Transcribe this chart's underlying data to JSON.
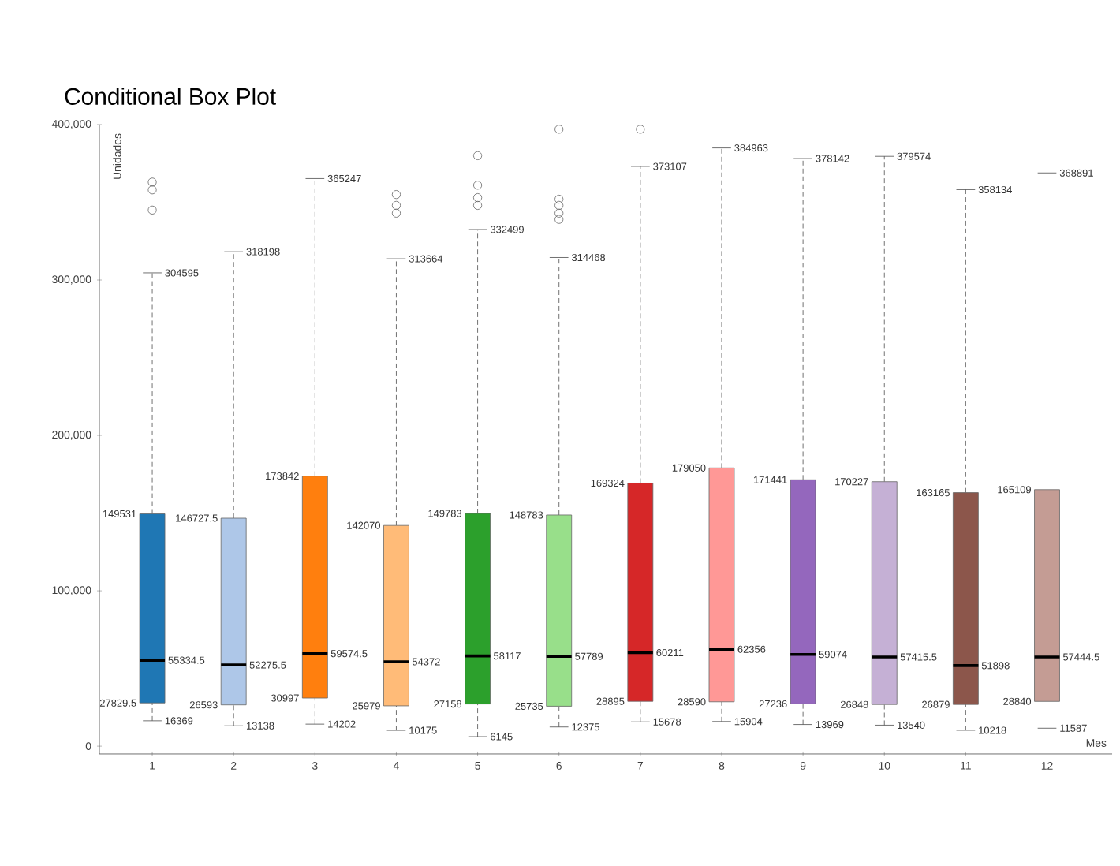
{
  "chart_data": {
    "type": "box",
    "title": "Conditional Box Plot",
    "xlabel": "Mes",
    "ylabel": "Unidades",
    "categories": [
      "1",
      "2",
      "3",
      "4",
      "5",
      "6",
      "7",
      "8",
      "9",
      "10",
      "11",
      "12"
    ],
    "colors": [
      "#1f77b4",
      "#aec7e8",
      "#ff7f0e",
      "#ffbb78",
      "#2ca02c",
      "#98df8a",
      "#d62728",
      "#ff9896",
      "#9467bd",
      "#c5b0d5",
      "#8c564b",
      "#c49c94"
    ],
    "boxes": [
      {
        "low": 16369,
        "q1": 27829.5,
        "median": 55334.5,
        "q3": 149531,
        "high": 304595,
        "outliers": [
          345000,
          358000,
          363000
        ]
      },
      {
        "low": 13138,
        "q1": 26593,
        "median": 52275.5,
        "q3": 146727.5,
        "high": 318198
      },
      {
        "low": 14202,
        "q1": 30997,
        "median": 59574.5,
        "q3": 173842,
        "high": 365247
      },
      {
        "low": 10175,
        "q1": 25979,
        "median": 54372,
        "q3": 142070,
        "high": 313664,
        "outliers": [
          343000,
          348000,
          355000
        ]
      },
      {
        "low": 6145,
        "q1": 27158,
        "median": 58117,
        "q3": 149783,
        "high": 332499,
        "outliers": [
          348000,
          353000,
          361000,
          380000
        ]
      },
      {
        "low": 12375,
        "q1": 25735,
        "median": 57789,
        "q3": 148783,
        "high": 314468,
        "outliers": [
          339000,
          343000,
          348000,
          352000,
          397000
        ]
      },
      {
        "low": 15678,
        "q1": 28895,
        "median": 60211,
        "q3": 169324,
        "high": 373107,
        "outliers": [
          397000
        ]
      },
      {
        "low": 15904,
        "q1": 28590,
        "median": 62356,
        "q3": 179050,
        "high": 384963
      },
      {
        "low": 13969,
        "q1": 27236,
        "median": 59074,
        "q3": 171441,
        "high": 378142
      },
      {
        "low": 13540,
        "q1": 26848,
        "median": 57415.5,
        "q3": 170227,
        "high": 379574
      },
      {
        "low": 10218,
        "q1": 26879,
        "median": 51898,
        "q3": 163165,
        "high": 358134
      },
      {
        "low": 11587,
        "q1": 28840,
        "median": 57444.5,
        "q3": 165109,
        "high": 368891
      }
    ],
    "annotations": [
      {
        "text": "149531",
        "x": "1",
        "y": 149531
      },
      {
        "text": "304595",
        "x": "1",
        "y": 304595
      },
      {
        "text": "55334.5",
        "x": "1",
        "y": 55334.5
      },
      {
        "text": "27829.5",
        "x": "1",
        "y": 27829.5
      },
      {
        "text": "16369",
        "x": "1",
        "y": 16369
      },
      {
        "text": "146727.5",
        "x": "2",
        "y": 146727.5
      },
      {
        "text": "318198",
        "x": "2",
        "y": 318198
      },
      {
        "text": "52275.5",
        "x": "2",
        "y": 52275.5
      },
      {
        "text": "26593",
        "x": "2",
        "y": 26593
      },
      {
        "text": "13138",
        "x": "2",
        "y": 13138
      },
      {
        "text": "173842",
        "x": "3",
        "y": 173842
      },
      {
        "text": "365247",
        "x": "3",
        "y": 365247
      },
      {
        "text": "59574.5",
        "x": "3",
        "y": 59574.5
      },
      {
        "text": "30997",
        "x": "3",
        "y": 30997
      },
      {
        "text": "14202",
        "x": "3",
        "y": 14202
      },
      {
        "text": "142070",
        "x": "4",
        "y": 142070
      },
      {
        "text": "313664",
        "x": "4",
        "y": 313664
      },
      {
        "text": "54372",
        "x": "4",
        "y": 54372
      },
      {
        "text": "25979",
        "x": "4",
        "y": 25979
      },
      {
        "text": "10175",
        "x": "4",
        "y": 10175
      },
      {
        "text": "149783",
        "x": "5",
        "y": 149783
      },
      {
        "text": "332499",
        "x": "5",
        "y": 332499
      },
      {
        "text": "58117",
        "x": "5",
        "y": 58117
      },
      {
        "text": "27158",
        "x": "5",
        "y": 27158
      },
      {
        "text": "6145",
        "x": "5",
        "y": 6145
      },
      {
        "text": "148783",
        "x": "6",
        "y": 148783
      },
      {
        "text": "314468",
        "x": "6",
        "y": 314468
      },
      {
        "text": "57789",
        "x": "6",
        "y": 57789
      },
      {
        "text": "25735",
        "x": "6",
        "y": 25735
      },
      {
        "text": "12375",
        "x": "6",
        "y": 12375
      },
      {
        "text": "169324",
        "x": "7",
        "y": 169324
      },
      {
        "text": "373107",
        "x": "7",
        "y": 373107
      },
      {
        "text": "60211",
        "x": "7",
        "y": 60211
      },
      {
        "text": "28895",
        "x": "7",
        "y": 28895
      },
      {
        "text": "15678",
        "x": "7",
        "y": 15678
      },
      {
        "text": "179050",
        "x": "8",
        "y": 179050
      },
      {
        "text": "384963",
        "x": "8",
        "y": 384963
      },
      {
        "text": "62356",
        "x": "8",
        "y": 62356
      },
      {
        "text": "28590",
        "x": "8",
        "y": 28590
      },
      {
        "text": "15904",
        "x": "8",
        "y": 15904
      },
      {
        "text": "171441",
        "x": "9",
        "y": 171441
      },
      {
        "text": "378142",
        "x": "9",
        "y": 378142
      },
      {
        "text": "59074",
        "x": "9",
        "y": 59074
      },
      {
        "text": "27236",
        "x": "9",
        "y": 27236
      },
      {
        "text": "13969",
        "x": "9",
        "y": 13969
      },
      {
        "text": "170227",
        "x": "10",
        "y": 170227
      },
      {
        "text": "379574",
        "x": "10",
        "y": 379574
      },
      {
        "text": "57415.5",
        "x": "10",
        "y": 57415.5
      },
      {
        "text": "26848",
        "x": "10",
        "y": 26848
      },
      {
        "text": "13540",
        "x": "10",
        "y": 13540
      },
      {
        "text": "163165",
        "x": "11",
        "y": 163165
      },
      {
        "text": "358134",
        "x": "11",
        "y": 358134
      },
      {
        "text": "51898",
        "x": "11",
        "y": 51898
      },
      {
        "text": "26879",
        "x": "11",
        "y": 26879
      },
      {
        "text": "10218",
        "x": "11",
        "y": 10218
      },
      {
        "text": "165109",
        "x": "12",
        "y": 165109
      },
      {
        "text": "368891",
        "x": "12",
        "y": 368891
      },
      {
        "text": "57444.5",
        "x": "12",
        "y": 57444.5
      },
      {
        "text": "28840",
        "x": "12",
        "y": 28840
      },
      {
        "text": "11587",
        "x": "12",
        "y": 11587
      }
    ],
    "ylim": [
      -5000,
      400000
    ],
    "yticks": [
      {
        "value": 0,
        "label": "0"
      },
      {
        "value": 100000,
        "label": "100,000"
      },
      {
        "value": 200000,
        "label": "200,000"
      },
      {
        "value": 300000,
        "label": "300,000"
      },
      {
        "value": 400000,
        "label": "400,000"
      }
    ]
  }
}
